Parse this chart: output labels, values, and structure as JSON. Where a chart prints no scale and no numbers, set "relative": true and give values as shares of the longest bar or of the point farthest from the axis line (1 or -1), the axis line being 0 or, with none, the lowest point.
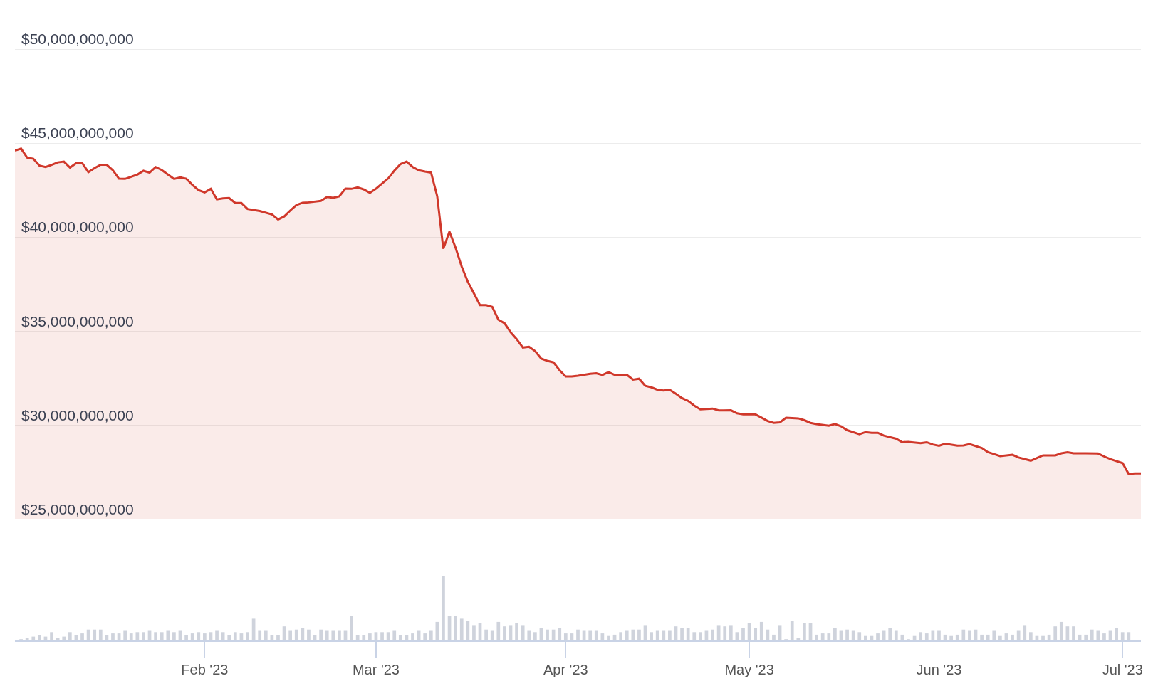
{
  "chart_data": [
    {
      "type": "area",
      "color": "#d0382b",
      "grid": "y",
      "tick_labels": "y",
      "xlim": [
        "2023-01-01",
        "2023-07-04"
      ],
      "ylim": [
        25000000000,
        51500000000
      ],
      "yticks": [
        {
          "value": 25000000000,
          "label": "$25,000,000,000"
        },
        {
          "value": 30000000000,
          "label": "$30,000,000,000"
        },
        {
          "value": 35000000000,
          "label": "$35,000,000,000"
        },
        {
          "value": 40000000000,
          "label": "$40,000,000,000"
        },
        {
          "value": 45000000000,
          "label": "$45,000,000,000"
        },
        {
          "value": 50000000000,
          "label": "$50,000,000,000"
        }
      ],
      "x": [
        "2023-01-01",
        "2023-01-02",
        "2023-01-03",
        "2023-01-04",
        "2023-01-05",
        "2023-01-06",
        "2023-01-07",
        "2023-01-08",
        "2023-01-09",
        "2023-01-10",
        "2023-01-11",
        "2023-01-12",
        "2023-01-13",
        "2023-01-14",
        "2023-01-15",
        "2023-01-16",
        "2023-01-17",
        "2023-01-18",
        "2023-01-19",
        "2023-01-20",
        "2023-01-21",
        "2023-01-22",
        "2023-01-23",
        "2023-01-24",
        "2023-01-25",
        "2023-01-26",
        "2023-01-27",
        "2023-01-28",
        "2023-01-29",
        "2023-01-30",
        "2023-01-31",
        "2023-02-01",
        "2023-02-02",
        "2023-02-03",
        "2023-02-04",
        "2023-02-05",
        "2023-02-06",
        "2023-02-07",
        "2023-02-08",
        "2023-02-10",
        "2023-02-12",
        "2023-02-13",
        "2023-02-14",
        "2023-02-15",
        "2023-02-16",
        "2023-02-17",
        "2023-02-18",
        "2023-02-20",
        "2023-02-21",
        "2023-02-22",
        "2023-02-23",
        "2023-02-24",
        "2023-02-25",
        "2023-02-26",
        "2023-02-27",
        "2023-02-28",
        "2023-03-01",
        "2023-03-03",
        "2023-03-04",
        "2023-03-05",
        "2023-03-06",
        "2023-03-07",
        "2023-03-08",
        "2023-03-09",
        "2023-03-10",
        "2023-03-11",
        "2023-03-12",
        "2023-03-13",
        "2023-03-14",
        "2023-03-15",
        "2023-03-16",
        "2023-03-17",
        "2023-03-18",
        "2023-03-19",
        "2023-03-20",
        "2023-03-21",
        "2023-03-22",
        "2023-03-23",
        "2023-03-24",
        "2023-03-25",
        "2023-03-26",
        "2023-03-27",
        "2023-03-28",
        "2023-03-29",
        "2023-03-30",
        "2023-03-31",
        "2023-04-01",
        "2023-04-02",
        "2023-04-03",
        "2023-04-05",
        "2023-04-06",
        "2023-04-07",
        "2023-04-08",
        "2023-04-09",
        "2023-04-10",
        "2023-04-11",
        "2023-04-12",
        "2023-04-13",
        "2023-04-14",
        "2023-04-15",
        "2023-04-16",
        "2023-04-17",
        "2023-04-18",
        "2023-04-19",
        "2023-04-20",
        "2023-04-21",
        "2023-04-22",
        "2023-04-23",
        "2023-04-25",
        "2023-04-26",
        "2023-04-28",
        "2023-04-29",
        "2023-04-30",
        "2023-05-02",
        "2023-05-03",
        "2023-05-04",
        "2023-05-05",
        "2023-05-06",
        "2023-05-07",
        "2023-05-09",
        "2023-05-10",
        "2023-05-11",
        "2023-05-12",
        "2023-05-14",
        "2023-05-15",
        "2023-05-16",
        "2023-05-17",
        "2023-05-19",
        "2023-05-20",
        "2023-05-21",
        "2023-05-22",
        "2023-05-23",
        "2023-05-25",
        "2023-05-26",
        "2023-05-27",
        "2023-05-29",
        "2023-05-30",
        "2023-05-31",
        "2023-06-01",
        "2023-06-02",
        "2023-06-04",
        "2023-06-05",
        "2023-06-06",
        "2023-06-08",
        "2023-06-09",
        "2023-06-10",
        "2023-06-11",
        "2023-06-13",
        "2023-06-14",
        "2023-06-16",
        "2023-06-17",
        "2023-06-18",
        "2023-06-20",
        "2023-06-21",
        "2023-06-22",
        "2023-06-23",
        "2023-06-25",
        "2023-06-27",
        "2023-06-28",
        "2023-06-29",
        "2023-07-01",
        "2023-07-02",
        "2023-07-03",
        "2023-07-04"
      ],
      "values": [
        44630000000,
        44730000000,
        44250000000,
        44190000000,
        43830000000,
        43750000000,
        43870000000,
        44000000000,
        44040000000,
        43720000000,
        43960000000,
        43960000000,
        43480000000,
        43690000000,
        43870000000,
        43870000000,
        43580000000,
        43130000000,
        43120000000,
        43230000000,
        43350000000,
        43550000000,
        43450000000,
        43750000000,
        43590000000,
        43350000000,
        43120000000,
        43200000000,
        43130000000,
        42800000000,
        42520000000,
        42400000000,
        42590000000,
        42030000000,
        42080000000,
        42100000000,
        41840000000,
        41840000000,
        41520000000,
        41410000000,
        41230000000,
        40960000000,
        41120000000,
        41440000000,
        41730000000,
        41850000000,
        41870000000,
        41950000000,
        42160000000,
        42110000000,
        42190000000,
        42600000000,
        42590000000,
        42670000000,
        42560000000,
        42380000000,
        42600000000,
        43150000000,
        43560000000,
        43910000000,
        44040000000,
        43750000000,
        43580000000,
        43510000000,
        43450000000,
        42200000000,
        39400000000,
        40310000000,
        39460000000,
        38460000000,
        37650000000,
        37030000000,
        36400000000,
        36400000000,
        36310000000,
        35630000000,
        35440000000,
        34960000000,
        34590000000,
        34150000000,
        34190000000,
        33960000000,
        33560000000,
        33440000000,
        33360000000,
        32940000000,
        32610000000,
        32610000000,
        32650000000,
        32750000000,
        32780000000,
        32690000000,
        32840000000,
        32690000000,
        32690000000,
        32690000000,
        32440000000,
        32490000000,
        32110000000,
        32030000000,
        31900000000,
        31860000000,
        31900000000,
        31690000000,
        31460000000,
        31310000000,
        31060000000,
        30860000000,
        30900000000,
        30800000000,
        30810000000,
        30650000000,
        30590000000,
        30590000000,
        30420000000,
        30240000000,
        30140000000,
        30170000000,
        30410000000,
        30380000000,
        30280000000,
        30140000000,
        30070000000,
        29990000000,
        30080000000,
        29960000000,
        29750000000,
        29540000000,
        29650000000,
        29610000000,
        29610000000,
        29460000000,
        29300000000,
        29110000000,
        29130000000,
        29060000000,
        29110000000,
        28990000000,
        28920000000,
        29030000000,
        28930000000,
        28940000000,
        29010000000,
        28800000000,
        28580000000,
        28480000000,
        28370000000,
        28440000000,
        28300000000,
        28130000000,
        28270000000,
        28410000000,
        28410000000,
        28520000000,
        28580000000,
        28520000000,
        28520000000,
        28510000000,
        28350000000,
        28210000000,
        28000000000,
        27420000000,
        27450000000,
        27450000000
      ]
    },
    {
      "type": "bar",
      "relative": true,
      "color": "#cfd3dc",
      "tick_labels": "x",
      "xlim": [
        "2023-01-01",
        "2023-07-04"
      ],
      "xticks": [
        {
          "value": "2023-02-01",
          "label": "Feb '23"
        },
        {
          "value": "2023-03-01",
          "label": "Mar '23"
        },
        {
          "value": "2023-04-01",
          "label": "Apr '23"
        },
        {
          "value": "2023-05-01",
          "label": "May '23"
        },
        {
          "value": "2023-06-01",
          "label": "Jun '23"
        },
        {
          "value": "2023-07-01",
          "label": "Jul '23"
        }
      ],
      "x": [
        "2023-01-02",
        "2023-01-03",
        "2023-01-04",
        "2023-01-05",
        "2023-01-06",
        "2023-01-07",
        "2023-01-08",
        "2023-01-09",
        "2023-01-10",
        "2023-01-11",
        "2023-01-12",
        "2023-01-13",
        "2023-01-14",
        "2023-01-15",
        "2023-01-16",
        "2023-01-17",
        "2023-01-18",
        "2023-01-19",
        "2023-01-20",
        "2023-01-21",
        "2023-01-22",
        "2023-01-23",
        "2023-01-24",
        "2023-01-25",
        "2023-01-26",
        "2023-01-27",
        "2023-01-28",
        "2023-01-29",
        "2023-01-30",
        "2023-01-31",
        "2023-02-01",
        "2023-02-02",
        "2023-02-03",
        "2023-02-04",
        "2023-02-05",
        "2023-02-06",
        "2023-02-07",
        "2023-02-08",
        "2023-02-09",
        "2023-02-10",
        "2023-02-11",
        "2023-02-12",
        "2023-02-13",
        "2023-02-14",
        "2023-02-15",
        "2023-02-16",
        "2023-02-17",
        "2023-02-18",
        "2023-02-19",
        "2023-02-20",
        "2023-02-21",
        "2023-02-22",
        "2023-02-23",
        "2023-02-24",
        "2023-02-25",
        "2023-02-26",
        "2023-02-27",
        "2023-02-28",
        "2023-03-01",
        "2023-03-02",
        "2023-03-03",
        "2023-03-04",
        "2023-03-05",
        "2023-03-06",
        "2023-03-07",
        "2023-03-08",
        "2023-03-09",
        "2023-03-10",
        "2023-03-11",
        "2023-03-12",
        "2023-03-13",
        "2023-03-14",
        "2023-03-15",
        "2023-03-16",
        "2023-03-17",
        "2023-03-18",
        "2023-03-19",
        "2023-03-20",
        "2023-03-21",
        "2023-03-22",
        "2023-03-23",
        "2023-03-24",
        "2023-03-25",
        "2023-03-26",
        "2023-03-27",
        "2023-03-28",
        "2023-03-29",
        "2023-03-30",
        "2023-03-31",
        "2023-04-01",
        "2023-04-02",
        "2023-04-03",
        "2023-04-04",
        "2023-04-05",
        "2023-04-06",
        "2023-04-07",
        "2023-04-08",
        "2023-04-09",
        "2023-04-10",
        "2023-04-11",
        "2023-04-12",
        "2023-04-13",
        "2023-04-14",
        "2023-04-15",
        "2023-04-16",
        "2023-04-17",
        "2023-04-18",
        "2023-04-19",
        "2023-04-20",
        "2023-04-21",
        "2023-04-22",
        "2023-04-23",
        "2023-04-24",
        "2023-04-25",
        "2023-04-26",
        "2023-04-27",
        "2023-04-28",
        "2023-04-29",
        "2023-04-30",
        "2023-05-01",
        "2023-05-02",
        "2023-05-03",
        "2023-05-04",
        "2023-05-05",
        "2023-05-06",
        "2023-05-07",
        "2023-05-08",
        "2023-05-09",
        "2023-05-10",
        "2023-05-11",
        "2023-05-12",
        "2023-05-13",
        "2023-05-14",
        "2023-05-15",
        "2023-05-16",
        "2023-05-17",
        "2023-05-18",
        "2023-05-19",
        "2023-05-20",
        "2023-05-21",
        "2023-05-22",
        "2023-05-23",
        "2023-05-24",
        "2023-05-25",
        "2023-05-26",
        "2023-05-27",
        "2023-05-28",
        "2023-05-29",
        "2023-05-30",
        "2023-05-31",
        "2023-06-01",
        "2023-06-02",
        "2023-06-03",
        "2023-06-04",
        "2023-06-05",
        "2023-06-06",
        "2023-06-07",
        "2023-06-08",
        "2023-06-09",
        "2023-06-10",
        "2023-06-11",
        "2023-06-12",
        "2023-06-13",
        "2023-06-14",
        "2023-06-15",
        "2023-06-16",
        "2023-06-17",
        "2023-06-18",
        "2023-06-19",
        "2023-06-20",
        "2023-06-21",
        "2023-06-22",
        "2023-06-23",
        "2023-06-24",
        "2023-06-25",
        "2023-06-26",
        "2023-06-27",
        "2023-06-28",
        "2023-06-29",
        "2023-06-30",
        "2023-07-01",
        "2023-07-02"
      ],
      "values": [
        0.02,
        0.04,
        0.06,
        0.08,
        0.06,
        0.13,
        0.04,
        0.06,
        0.13,
        0.08,
        0.11,
        0.17,
        0.17,
        0.17,
        0.08,
        0.11,
        0.11,
        0.15,
        0.11,
        0.13,
        0.13,
        0.15,
        0.13,
        0.13,
        0.15,
        0.13,
        0.15,
        0.08,
        0.11,
        0.13,
        0.11,
        0.13,
        0.15,
        0.13,
        0.08,
        0.13,
        0.11,
        0.13,
        0.34,
        0.15,
        0.15,
        0.08,
        0.08,
        0.22,
        0.15,
        0.17,
        0.19,
        0.17,
        0.08,
        0.17,
        0.15,
        0.15,
        0.15,
        0.15,
        0.38,
        0.08,
        0.08,
        0.11,
        0.13,
        0.13,
        0.13,
        0.15,
        0.08,
        0.08,
        0.11,
        0.15,
        0.11,
        0.15,
        0.29,
        1,
        0.38,
        0.38,
        0.34,
        0.31,
        0.24,
        0.27,
        0.17,
        0.15,
        0.29,
        0.22,
        0.24,
        0.27,
        0.24,
        0.15,
        0.13,
        0.19,
        0.17,
        0.17,
        0.19,
        0.11,
        0.11,
        0.17,
        0.15,
        0.15,
        0.15,
        0.11,
        0.07,
        0.09,
        0.13,
        0.15,
        0.17,
        0.17,
        0.24,
        0.13,
        0.15,
        0.15,
        0.15,
        0.22,
        0.2,
        0.2,
        0.13,
        0.13,
        0.15,
        0.17,
        0.24,
        0.22,
        0.24,
        0.13,
        0.2,
        0.27,
        0.2,
        0.29,
        0.17,
        0.09,
        0.24,
        0.02,
        0.31,
        0.04,
        0.27,
        0.27,
        0.09,
        0.11,
        0.11,
        0.2,
        0.15,
        0.17,
        0.15,
        0.13,
        0.07,
        0.07,
        0.11,
        0.15,
        0.2,
        0.15,
        0.09,
        0.02,
        0.07,
        0.13,
        0.11,
        0.15,
        0.15,
        0.09,
        0.07,
        0.09,
        0.17,
        0.15,
        0.17,
        0.09,
        0.09,
        0.15,
        0.07,
        0.11,
        0.09,
        0.15,
        0.24,
        0.13,
        0.07,
        0.07,
        0.09,
        0.22,
        0.29,
        0.22,
        0.22,
        0.09,
        0.09,
        0.17,
        0.15,
        0.11,
        0.15,
        0.2,
        0.13,
        0.13
      ]
    }
  ]
}
